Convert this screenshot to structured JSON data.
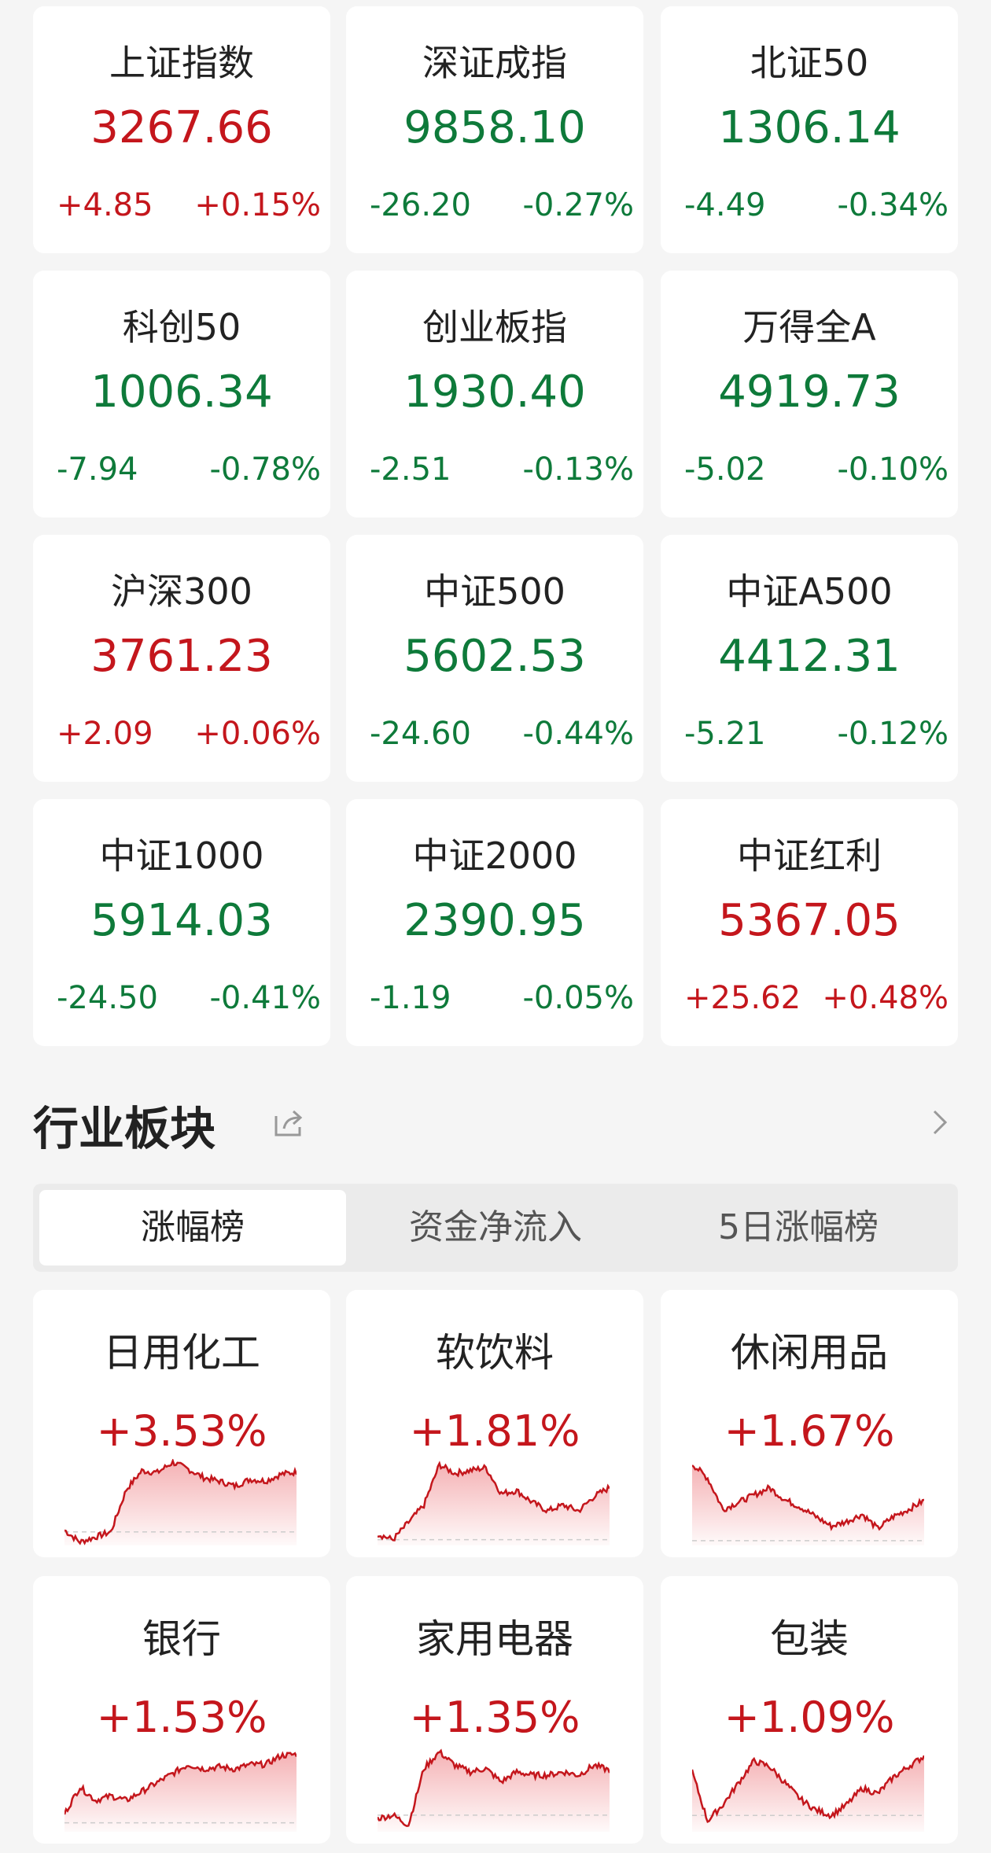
{
  "indices": [
    {
      "name": "上证指数",
      "value": "3267.66",
      "change": "+4.85",
      "pct": "+0.15%",
      "dir": "up"
    },
    {
      "name": "深证成指",
      "value": "9858.10",
      "change": "-26.20",
      "pct": "-0.27%",
      "dir": "down"
    },
    {
      "name": "北证50",
      "value": "1306.14",
      "change": "-4.49",
      "pct": "-0.34%",
      "dir": "down"
    },
    {
      "name": "科创50",
      "value": "1006.34",
      "change": "-7.94",
      "pct": "-0.78%",
      "dir": "down"
    },
    {
      "name": "创业板指",
      "value": "1930.40",
      "change": "-2.51",
      "pct": "-0.13%",
      "dir": "down"
    },
    {
      "name": "万得全A",
      "value": "4919.73",
      "change": "-5.02",
      "pct": "-0.10%",
      "dir": "down"
    },
    {
      "name": "沪深300",
      "value": "3761.23",
      "change": "+2.09",
      "pct": "+0.06%",
      "dir": "up"
    },
    {
      "name": "中证500",
      "value": "5602.53",
      "change": "-24.60",
      "pct": "-0.44%",
      "dir": "down"
    },
    {
      "name": "中证A500",
      "value": "4412.31",
      "change": "-5.21",
      "pct": "-0.12%",
      "dir": "down"
    },
    {
      "name": "中证1000",
      "value": "5914.03",
      "change": "-24.50",
      "pct": "-0.41%",
      "dir": "down"
    },
    {
      "name": "中证2000",
      "value": "2390.95",
      "change": "-1.19",
      "pct": "-0.05%",
      "dir": "down"
    },
    {
      "name": "中证红利",
      "value": "5367.05",
      "change": "+25.62",
      "pct": "+0.48%",
      "dir": "up"
    }
  ],
  "section": {
    "title": "行业板块",
    "share_icon": "share-icon",
    "more_icon": "chevron-right-icon"
  },
  "tabs": [
    {
      "label": "涨幅榜",
      "active": true
    },
    {
      "label": "资金净流入",
      "active": false
    },
    {
      "label": "5日涨幅榜",
      "active": false
    }
  ],
  "colors": {
    "up": "#c4161c",
    "down": "#0e7a3a",
    "background": "#f5f5f5"
  },
  "sectors": [
    {
      "name": "日用化工",
      "pct": "+3.53%",
      "sparkline": [
        0.1,
        -0.6,
        -0.3,
        0,
        2.5,
        3.6,
        3.5,
        4.1,
        3.7,
        3.2,
        3.0,
        2.7,
        3.1,
        3.0,
        3.4,
        3.53
      ]
    },
    {
      "name": "软饮料",
      "pct": "+1.81%",
      "sparkline": [
        0.2,
        0,
        0.6,
        1.2,
        2.6,
        2.3,
        2.4,
        2.5,
        1.6,
        1.7,
        1.3,
        1.0,
        1.2,
        1.0,
        1.5,
        1.81
      ]
    },
    {
      "name": "休闲用品",
      "pct": "+1.67%",
      "sparkline": [
        3.2,
        2.6,
        1.3,
        1.6,
        1.9,
        2.2,
        1.7,
        1.4,
        1.0,
        0.6,
        0.8,
        1.1,
        0.5,
        1.0,
        1.3,
        1.67
      ]
    },
    {
      "name": "银行",
      "pct": "+1.53%",
      "sparkline": [
        0.2,
        0.8,
        0.5,
        0.6,
        0.5,
        0.7,
        0.9,
        1.1,
        1.3,
        1.2,
        1.25,
        1.2,
        1.3,
        1.3,
        1.5,
        1.53
      ]
    },
    {
      "name": "家用电器",
      "pct": "+1.35%",
      "sparkline": [
        -0.1,
        0,
        -0.3,
        1.4,
        1.9,
        1.5,
        1.3,
        1.4,
        1.0,
        1.3,
        1.2,
        1.2,
        1.3,
        1.2,
        1.5,
        1.35
      ]
    },
    {
      "name": "包装",
      "pct": "+1.09%",
      "sparkline": [
        0.8,
        -0.1,
        0.2,
        0.6,
        1.0,
        0.9,
        0.6,
        0.3,
        0.1,
        0.0,
        0.2,
        0.5,
        0.4,
        0.7,
        0.9,
        1.09
      ]
    }
  ]
}
